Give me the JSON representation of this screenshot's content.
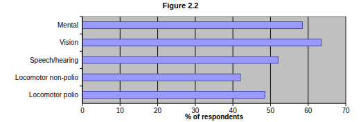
{
  "chart_data": {
    "type": "bar",
    "title": "Figure 2.2",
    "orientation": "horizontal",
    "categories": [
      "Mental",
      "Vision",
      "Speech/hearing",
      "Locomotor non-polio",
      "Locomotor polio"
    ],
    "values": [
      58.5,
      63.5,
      52,
      42,
      48.5
    ],
    "color": "#9999ff",
    "x_label": "% of respondents",
    "xlim": [
      0,
      70
    ],
    "xticks": [
      0,
      10,
      20,
      30,
      40,
      50,
      60,
      70
    ],
    "grid": true
  }
}
